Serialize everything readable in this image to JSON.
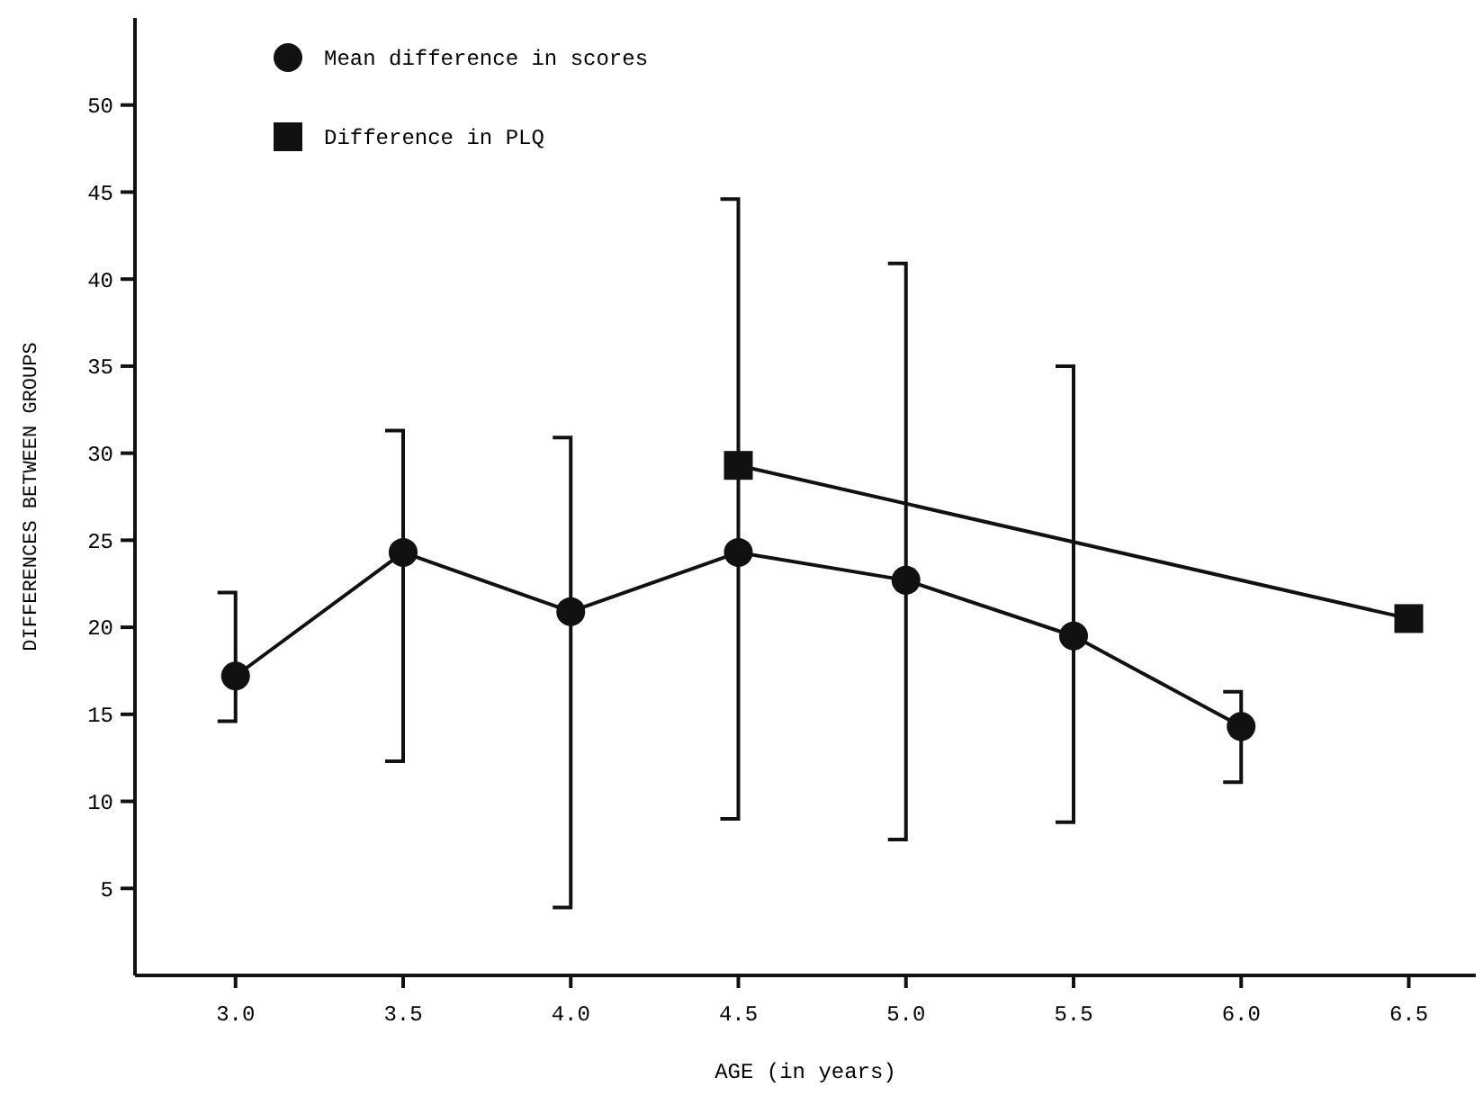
{
  "chart_data": {
    "type": "line",
    "xlabel": "AGE (in years)",
    "ylabel": "DIFFERENCES BETWEEN GROUPS",
    "xlim": [
      2.7,
      6.7
    ],
    "ylim": [
      0,
      55
    ],
    "xticks": [
      {
        "value": 3,
        "label": "3.0"
      },
      {
        "value": 3.5,
        "label": "3.5"
      },
      {
        "value": 4,
        "label": "4.0"
      },
      {
        "value": 4.5,
        "label": "4.5"
      },
      {
        "value": 5,
        "label": "5.0"
      },
      {
        "value": 5.5,
        "label": "5.5"
      },
      {
        "value": 6,
        "label": "6.0"
      },
      {
        "value": 6.5,
        "label": "6.5"
      }
    ],
    "yticks": [
      5,
      10,
      15,
      20,
      25,
      30,
      35,
      40,
      45,
      50
    ],
    "grid": false,
    "legend": "top left",
    "series": [
      {
        "name": "Mean difference in scores",
        "color": "#111111",
        "marker": "circle",
        "x": [
          3,
          3.5,
          4,
          4.5,
          5,
          5.5,
          6
        ],
        "values": [
          17.2,
          24.3,
          20.9,
          24.3,
          22.7,
          19.5,
          14.3
        ],
        "errors": [
          [
            14.6,
            22
          ],
          [
            12.3,
            31.3
          ],
          [
            3.9,
            30.9
          ],
          [
            9,
            44.6
          ],
          [
            7.8,
            40.9
          ],
          [
            8.8,
            35
          ],
          [
            11.1,
            16.3
          ]
        ]
      },
      {
        "name": "Difference in PLQ",
        "color": "#111111",
        "marker": "square",
        "x": [
          4.5,
          6.5
        ],
        "values": [
          29.3,
          20.5
        ]
      }
    ]
  }
}
